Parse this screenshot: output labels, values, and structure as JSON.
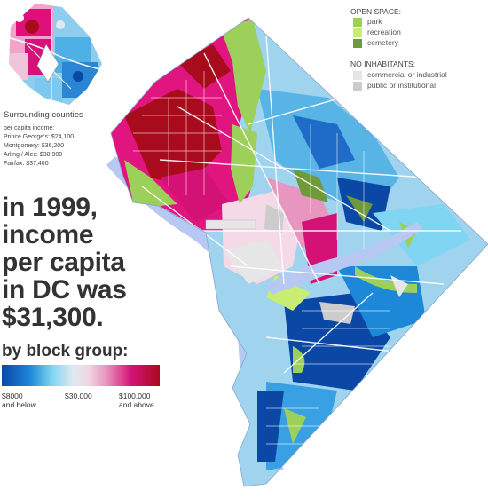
{
  "inset": {
    "title": "Surrounding counties",
    "subtitle": "per capita income:",
    "counties": [
      "Prince George's: $24,100",
      "Montgomery: $36,200",
      "Arling / Alex: $38,900",
      "Fairfax: $37,400"
    ]
  },
  "headline": {
    "line1": "in 1999,",
    "line2": "income",
    "line3": "per capita",
    "line4": "in DC was",
    "line5": "$31,300."
  },
  "legend": {
    "title": "by block group:",
    "tick_low": "$8000",
    "tick_low_sub": "and below",
    "tick_mid": "$30,000",
    "tick_high": "$100,000",
    "tick_high_sub": "and above",
    "colors": [
      "#0b47a4",
      "#1e88d8",
      "#7fd5f2",
      "#dfe9ef",
      "#e895c0",
      "#d41276",
      "#a80b1c"
    ]
  },
  "open_space": {
    "title": "OPEN SPACE:",
    "items": [
      {
        "label": "park",
        "color": "#9dd05a"
      },
      {
        "label": "recreation",
        "color": "#c9ec72"
      },
      {
        "label": "cemetery",
        "color": "#6f9a3c"
      }
    ]
  },
  "no_inhabitants": {
    "title": "NO INHABITANTS:",
    "items": [
      {
        "label": "commercial or industrial",
        "color": "#e6e6e6"
      },
      {
        "label": "public or institutional",
        "color": "#cccccc"
      }
    ]
  },
  "map_colors": {
    "water": "#b7c8f2",
    "district_base": "#9fd3ee",
    "roads": "#ffffff"
  }
}
